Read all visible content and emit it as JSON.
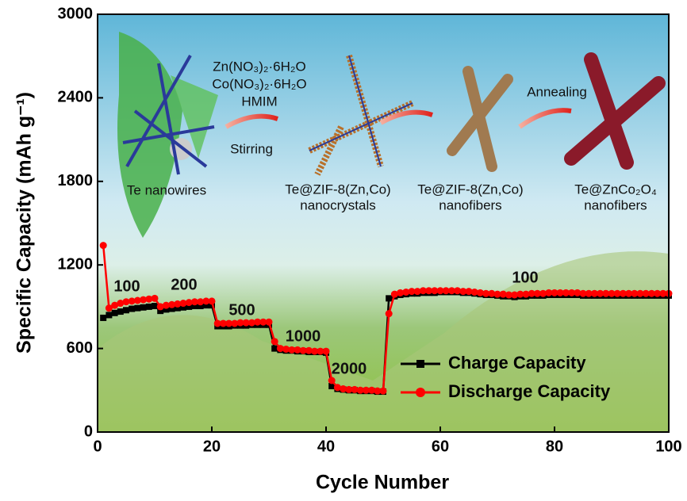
{
  "chart_data": {
    "type": "line",
    "x_label": "Cycle Number",
    "y_label": "Specific Capacity (mAh g⁻¹)",
    "xlim": [
      0,
      100
    ],
    "xticks": [
      0,
      20,
      40,
      60,
      80,
      100
    ],
    "ylim": [
      0,
      3000
    ],
    "yticks": [
      0,
      600,
      1200,
      1800,
      2400,
      3000
    ],
    "legend": "lower right",
    "x": [
      1,
      2,
      3,
      4,
      5,
      6,
      7,
      8,
      9,
      10,
      11,
      12,
      13,
      14,
      15,
      16,
      17,
      18,
      19,
      20,
      21,
      22,
      23,
      24,
      25,
      26,
      27,
      28,
      29,
      30,
      31,
      32,
      33,
      34,
      35,
      36,
      37,
      38,
      39,
      40,
      41,
      42,
      43,
      44,
      45,
      46,
      47,
      48,
      49,
      50,
      51,
      52,
      53,
      54,
      55,
      56,
      57,
      58,
      59,
      60,
      61,
      62,
      63,
      64,
      65,
      66,
      67,
      68,
      69,
      70,
      71,
      72,
      73,
      74,
      75,
      76,
      77,
      78,
      79,
      80,
      81,
      82,
      83,
      84,
      85,
      86,
      87,
      88,
      89,
      90,
      91,
      92,
      93,
      94,
      95,
      96,
      97,
      98,
      99,
      100
    ],
    "series": [
      {
        "name": "Charge Capacity",
        "color": "#000000",
        "marker": "square",
        "values": [
          820,
          840,
          855,
          865,
          875,
          885,
          890,
          895,
          900,
          905,
          870,
          880,
          885,
          890,
          895,
          900,
          905,
          905,
          910,
          910,
          760,
          760,
          760,
          765,
          765,
          765,
          770,
          770,
          770,
          770,
          600,
          590,
          585,
          585,
          580,
          580,
          575,
          575,
          575,
          570,
          330,
          310,
          305,
          300,
          300,
          295,
          295,
          295,
          290,
          290,
          960,
          975,
          985,
          990,
          995,
          995,
          1000,
          1000,
          1000,
          1005,
          1005,
          1005,
          1005,
          1000,
          1000,
          995,
          990,
          985,
          985,
          980,
          975,
          975,
          970,
          975,
          975,
          980,
          980,
          980,
          985,
          985,
          985,
          985,
          985,
          985,
          980,
          980,
          980,
          980,
          980,
          980,
          980,
          980,
          980,
          980,
          980,
          980,
          980,
          980,
          980,
          980
        ]
      },
      {
        "name": "Discharge Capacity",
        "color": "#ff0000",
        "marker": "circle",
        "values": [
          1340,
          890,
          910,
          925,
          935,
          940,
          945,
          950,
          955,
          960,
          900,
          910,
          915,
          920,
          925,
          930,
          935,
          935,
          940,
          940,
          780,
          780,
          780,
          780,
          785,
          785,
          785,
          790,
          790,
          790,
          650,
          600,
          595,
          590,
          590,
          585,
          585,
          580,
          580,
          580,
          370,
          320,
          310,
          305,
          305,
          300,
          300,
          300,
          295,
          295,
          850,
          990,
          1000,
          1005,
          1010,
          1010,
          1015,
          1015,
          1015,
          1015,
          1015,
          1015,
          1015,
          1010,
          1010,
          1005,
          1000,
          995,
          995,
          990,
          990,
          985,
          985,
          990,
          990,
          995,
          995,
          995,
          1000,
          1000,
          1000,
          1000,
          1000,
          1000,
          995,
          995,
          995,
          995,
          995,
          995,
          995,
          995,
          995,
          995,
          995,
          995,
          995,
          995,
          995,
          995
        ]
      }
    ],
    "annotations": [
      "100",
      "200",
      "500",
      "1000",
      "2000",
      "100"
    ],
    "schematic": {
      "te_nanowires": "Te nanowires",
      "reagents": [
        "Zn(NO₃)₂·6H₂O",
        "Co(NO₃)₂·6H₂O",
        "HMIM"
      ],
      "step1": "Stirring",
      "step2": "Annealing",
      "products": [
        [
          "Te@ZIF-8(Zn,Co)",
          "nanocrystals"
        ],
        [
          "Te@ZIF-8(Zn,Co)",
          "nanofibers"
        ],
        [
          "Te@ZnCo₂O₄",
          "nanofibers"
        ]
      ]
    }
  }
}
